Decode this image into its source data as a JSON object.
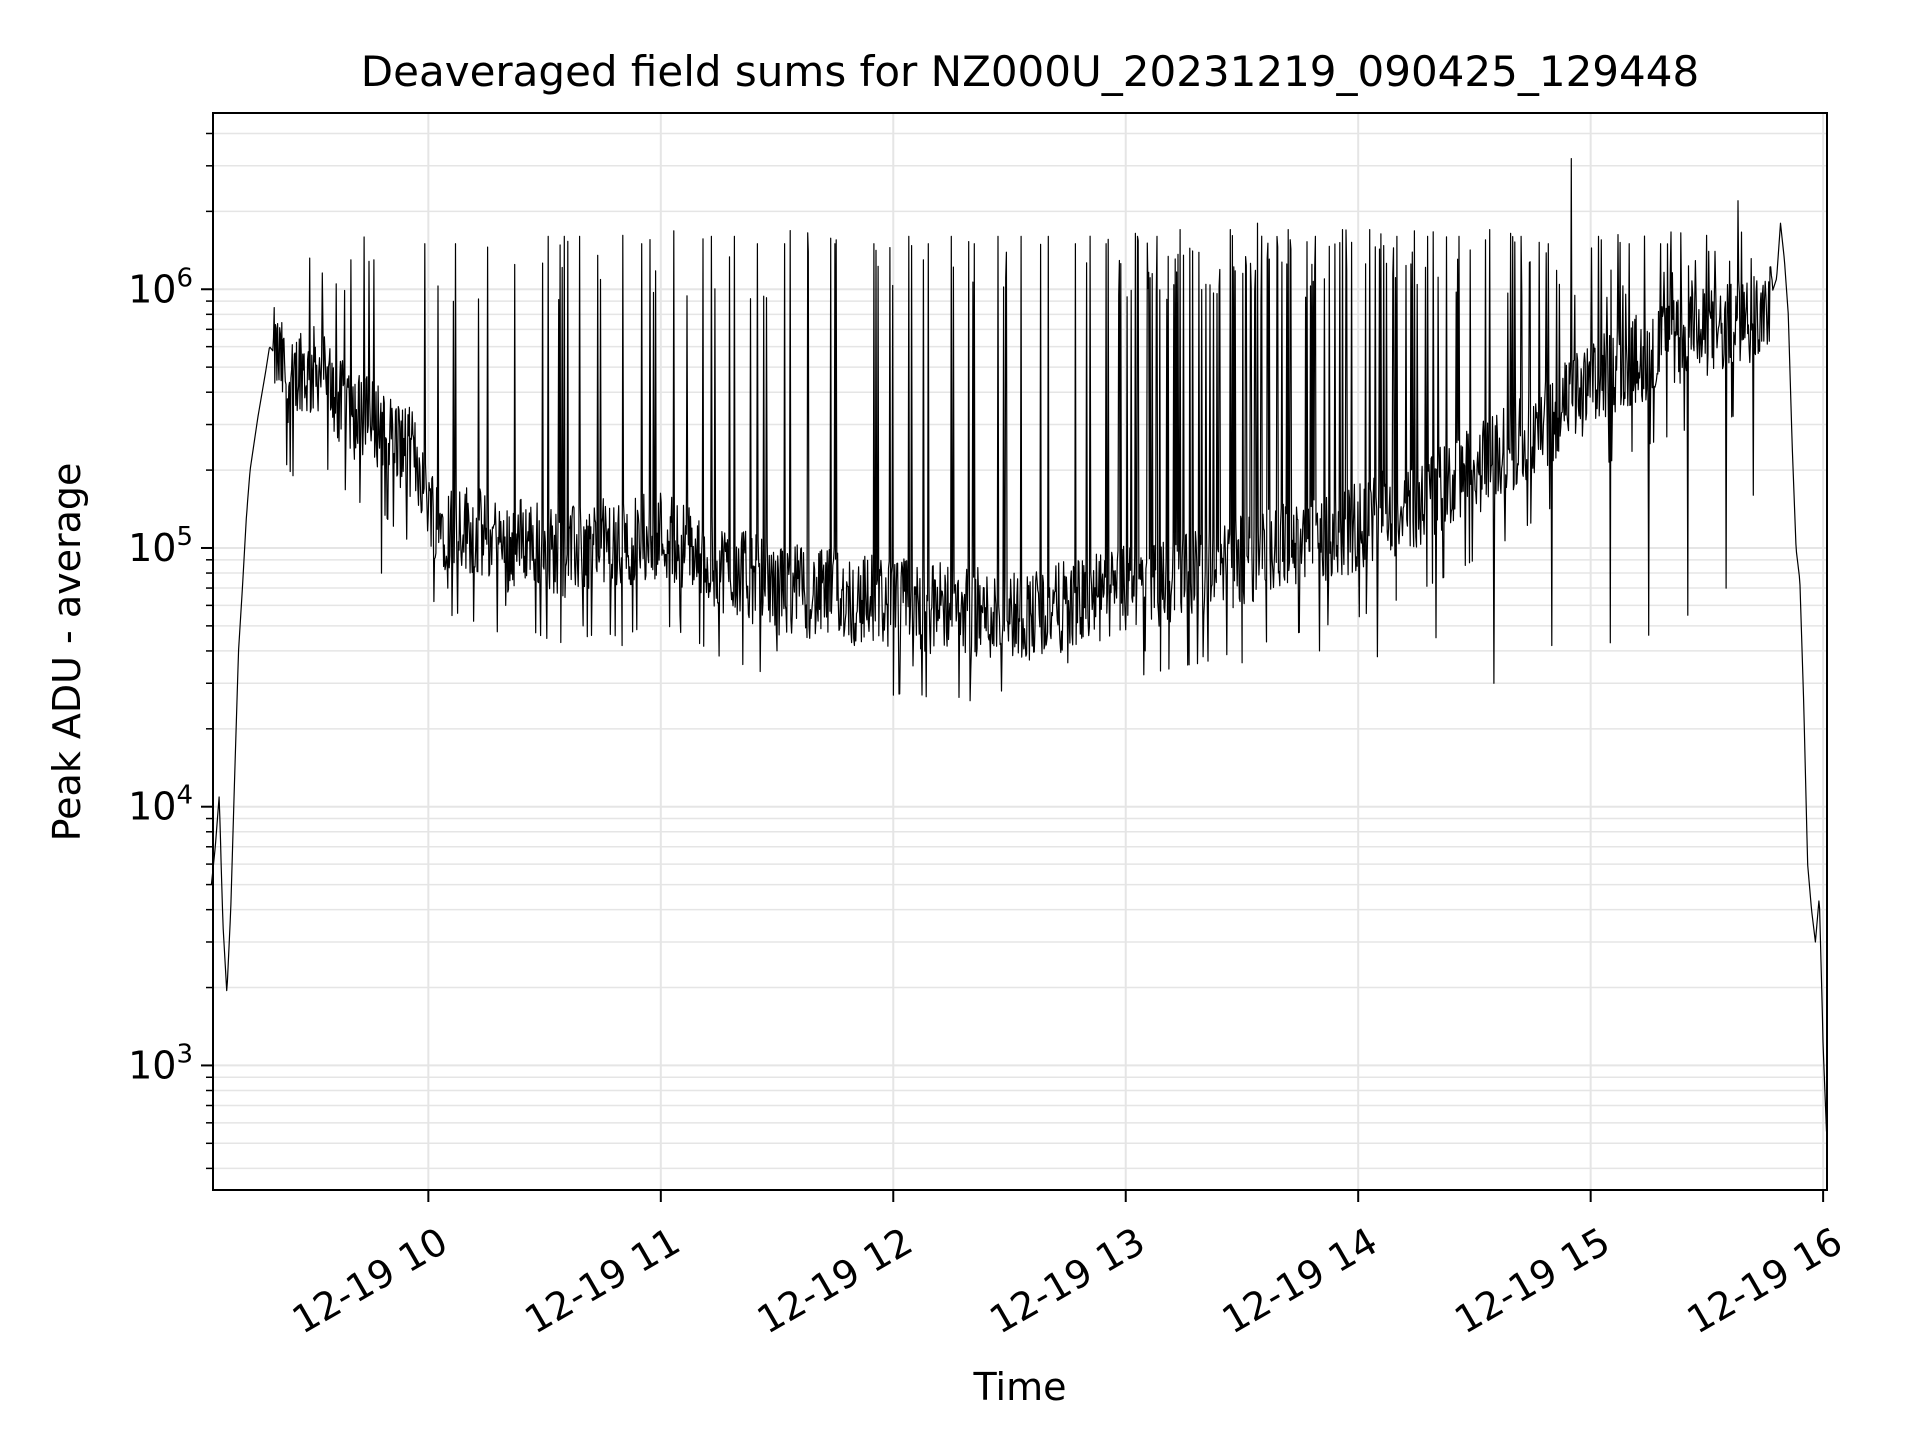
{
  "chart_data": {
    "type": "line",
    "title": "Deaveraged field sums for NZ000U_20231219_090425_129448",
    "xlabel": "Time",
    "ylabel": "Peak ADU - average",
    "y_scale": "log",
    "ylim": [
      330,
      4800000
    ],
    "xlim": [
      "2023-12-19T09:04:25",
      "2023-12-19T16:01:00"
    ],
    "grid": true,
    "line_color": "#000000",
    "grid_color": "#e5e5e5",
    "x_ticks": [
      {
        "value": "2023-12-19T10:00",
        "label": "12-19 10"
      },
      {
        "value": "2023-12-19T11:00",
        "label": "12-19 11"
      },
      {
        "value": "2023-12-19T12:00",
        "label": "12-19 12"
      },
      {
        "value": "2023-12-19T13:00",
        "label": "12-19 13"
      },
      {
        "value": "2023-12-19T14:00",
        "label": "12-19 14"
      },
      {
        "value": "2023-12-19T15:00",
        "label": "12-19 15"
      },
      {
        "value": "2023-12-19T16:00",
        "label": "12-19 16"
      }
    ],
    "y_ticks": [
      {
        "value": 1000,
        "base": "10",
        "exp": "3"
      },
      {
        "value": 10000,
        "base": "10",
        "exp": "4"
      },
      {
        "value": 100000,
        "base": "10",
        "exp": "5"
      },
      {
        "value": 1000000,
        "base": "10",
        "exp": "6"
      }
    ],
    "series": [
      {
        "points": [
          [
            "09:04",
            5000
          ],
          [
            "09:05",
            7000
          ],
          [
            "09:06",
            11000
          ],
          [
            "09:07",
            3500
          ],
          [
            "09:08",
            1900
          ],
          [
            "09:09",
            4000
          ],
          [
            "09:10",
            13000
          ],
          [
            "09:11",
            40000
          ],
          [
            "09:12",
            70000
          ],
          [
            "09:13",
            130000
          ],
          [
            "09:14",
            200000
          ],
          [
            "09:16",
            320000
          ],
          [
            "09:18",
            480000
          ],
          [
            "09:19",
            600000
          ],
          [
            "09:21",
            550000
          ],
          [
            "09:23",
            480000
          ],
          [
            "09:25",
            420000
          ],
          [
            "09:27",
            520000
          ],
          [
            "09:29",
            450000
          ],
          [
            "09:31",
            500000
          ],
          [
            "09:33",
            480000
          ],
          [
            "09:35",
            420000
          ],
          [
            "09:37",
            350000
          ],
          [
            "09:39",
            380000
          ],
          [
            "09:41",
            320000
          ],
          [
            "09:43",
            340000
          ],
          [
            "09:45",
            300000
          ],
          [
            "09:48",
            310000
          ],
          [
            "09:50",
            280000
          ],
          [
            "09:53",
            250000
          ],
          [
            "09:56",
            230000
          ],
          [
            "09:58",
            200000
          ],
          [
            "10:00",
            160000
          ],
          [
            "10:02",
            130000
          ],
          [
            "10:05",
            120000
          ],
          [
            "10:08",
            125000
          ],
          [
            "10:12",
            115000
          ],
          [
            "10:16",
            110000
          ],
          [
            "10:20",
            100000
          ],
          [
            "10:25",
            110000
          ],
          [
            "10:30",
            100000
          ],
          [
            "10:35",
            95000
          ],
          [
            "10:40",
            100000
          ],
          [
            "10:45",
            105000
          ],
          [
            "10:50",
            100000
          ],
          [
            "10:55",
            110000
          ],
          [
            "11:00",
            115000
          ],
          [
            "11:05",
            105000
          ],
          [
            "11:10",
            95000
          ],
          [
            "11:15",
            85000
          ],
          [
            "11:20",
            80000
          ],
          [
            "11:25",
            75000
          ],
          [
            "11:30",
            68000
          ],
          [
            "11:35",
            70000
          ],
          [
            "11:40",
            65000
          ],
          [
            "11:45",
            68000
          ],
          [
            "11:50",
            62000
          ],
          [
            "11:55",
            65000
          ],
          [
            "12:00",
            60000
          ],
          [
            "12:05",
            62000
          ],
          [
            "12:10",
            58000
          ],
          [
            "12:15",
            60000
          ],
          [
            "12:20",
            57000
          ],
          [
            "12:25",
            55000
          ],
          [
            "12:30",
            56000
          ],
          [
            "12:35",
            55000
          ],
          [
            "12:40",
            57000
          ],
          [
            "12:45",
            60000
          ],
          [
            "12:50",
            62000
          ],
          [
            "12:55",
            65000
          ],
          [
            "13:00",
            70000
          ],
          [
            "13:05",
            72000
          ],
          [
            "13:10",
            75000
          ],
          [
            "13:15",
            78000
          ],
          [
            "13:20",
            80000
          ],
          [
            "13:25",
            85000
          ],
          [
            "13:30",
            90000
          ],
          [
            "13:35",
            95000
          ],
          [
            "13:40",
            100000
          ],
          [
            "13:45",
            105000
          ],
          [
            "13:50",
            110000
          ],
          [
            "13:55",
            115000
          ],
          [
            "14:00",
            120000
          ],
          [
            "14:05",
            130000
          ],
          [
            "14:10",
            140000
          ],
          [
            "14:15",
            150000
          ],
          [
            "14:20",
            165000
          ],
          [
            "14:25",
            180000
          ],
          [
            "14:30",
            200000
          ],
          [
            "14:35",
            220000
          ],
          [
            "14:40",
            250000
          ],
          [
            "14:45",
            280000
          ],
          [
            "14:50",
            320000
          ],
          [
            "14:55",
            370000
          ],
          [
            "15:00",
            430000
          ],
          [
            "15:05",
            480000
          ],
          [
            "15:10",
            520000
          ],
          [
            "15:15",
            560000
          ],
          [
            "15:20",
            600000
          ],
          [
            "15:25",
            640000
          ],
          [
            "15:30",
            680000
          ],
          [
            "15:35",
            700000
          ],
          [
            "15:40",
            750000
          ],
          [
            "15:45",
            800000
          ],
          [
            "15:48",
            1100000
          ],
          [
            "15:49",
            1800000
          ],
          [
            "15:50",
            1300000
          ],
          [
            "15:51",
            800000
          ],
          [
            "15:52",
            250000
          ],
          [
            "15:53",
            100000
          ],
          [
            "15:54",
            75000
          ],
          [
            "15:55",
            25000
          ],
          [
            "15:56",
            6000
          ],
          [
            "15:57",
            4000
          ],
          [
            "15:58",
            3000
          ],
          [
            "15:59",
            4500
          ],
          [
            "16:00",
            1200
          ],
          [
            "16:01",
            500
          ]
        ]
      }
    ],
    "spikes": [
      [
        "09:40",
        1300000
      ],
      [
        "09:46",
        1300000
      ],
      [
        "09:48",
        1500000
      ],
      [
        "09:59",
        1500000
      ],
      [
        "10:07",
        1500000
      ],
      [
        "10:31",
        1600000
      ],
      [
        "10:35",
        1600000
      ],
      [
        "10:39",
        1600000
      ],
      [
        "10:50",
        1600000
      ],
      [
        "10:55",
        1500000
      ],
      [
        "11:05",
        1500000
      ],
      [
        "11:13",
        1600000
      ],
      [
        "11:19",
        1600000
      ],
      [
        "11:25",
        1500000
      ],
      [
        "11:32",
        1500000
      ],
      [
        "11:38",
        1400000
      ],
      [
        "11:45",
        1500000
      ],
      [
        "11:55",
        1500000
      ],
      [
        "12:04",
        1600000
      ],
      [
        "12:09",
        1500000
      ],
      [
        "12:15",
        1600000
      ],
      [
        "12:21",
        1500000
      ],
      [
        "12:27",
        1600000
      ],
      [
        "12:33",
        1600000
      ],
      [
        "12:40",
        1600000
      ],
      [
        "12:47",
        1500000
      ],
      [
        "12:55",
        1500000
      ],
      [
        "13:03",
        1600000
      ],
      [
        "13:08",
        1600000
      ],
      [
        "13:14",
        1700000
      ],
      [
        "13:20",
        1700000
      ],
      [
        "13:27",
        1700000
      ],
      [
        "13:34",
        1800000
      ],
      [
        "13:42",
        1700000
      ],
      [
        "13:49",
        1600000
      ],
      [
        "13:56",
        1700000
      ],
      [
        "14:03",
        1700000
      ],
      [
        "14:10",
        1600000
      ],
      [
        "14:18",
        1600000
      ],
      [
        "14:26",
        1600000
      ],
      [
        "14:34",
        1700000
      ],
      [
        "14:42",
        1600000
      ],
      [
        "14:49",
        1500000
      ],
      [
        "14:55",
        3200000
      ],
      [
        "15:02",
        1600000
      ],
      [
        "15:10",
        1500000
      ],
      [
        "15:18",
        1500000
      ],
      [
        "15:25",
        1500000
      ],
      [
        "15:32",
        1400000
      ],
      [
        "15:38",
        2200000
      ]
    ],
    "dips": [
      [
        "09:48",
        80000
      ],
      [
        "10:05",
        70000
      ],
      [
        "10:20",
        60000
      ],
      [
        "10:40",
        50000
      ],
      [
        "10:50",
        42000
      ],
      [
        "11:05",
        55000
      ],
      [
        "11:30",
        40000
      ],
      [
        "11:50",
        42000
      ],
      [
        "12:05",
        35000
      ],
      [
        "12:20",
        34000
      ],
      [
        "12:28",
        28000
      ],
      [
        "12:45",
        36000
      ],
      [
        "13:05",
        40000
      ],
      [
        "13:20",
        38000
      ],
      [
        "13:30",
        36000
      ],
      [
        "13:50",
        40000
      ],
      [
        "14:05",
        38000
      ],
      [
        "14:20",
        45000
      ],
      [
        "14:35",
        30000
      ],
      [
        "14:50",
        42000
      ],
      [
        "15:05",
        43000
      ],
      [
        "15:15",
        46000
      ],
      [
        "15:25",
        55000
      ],
      [
        "15:35",
        70000
      ],
      [
        "15:42",
        160000
      ]
    ]
  }
}
